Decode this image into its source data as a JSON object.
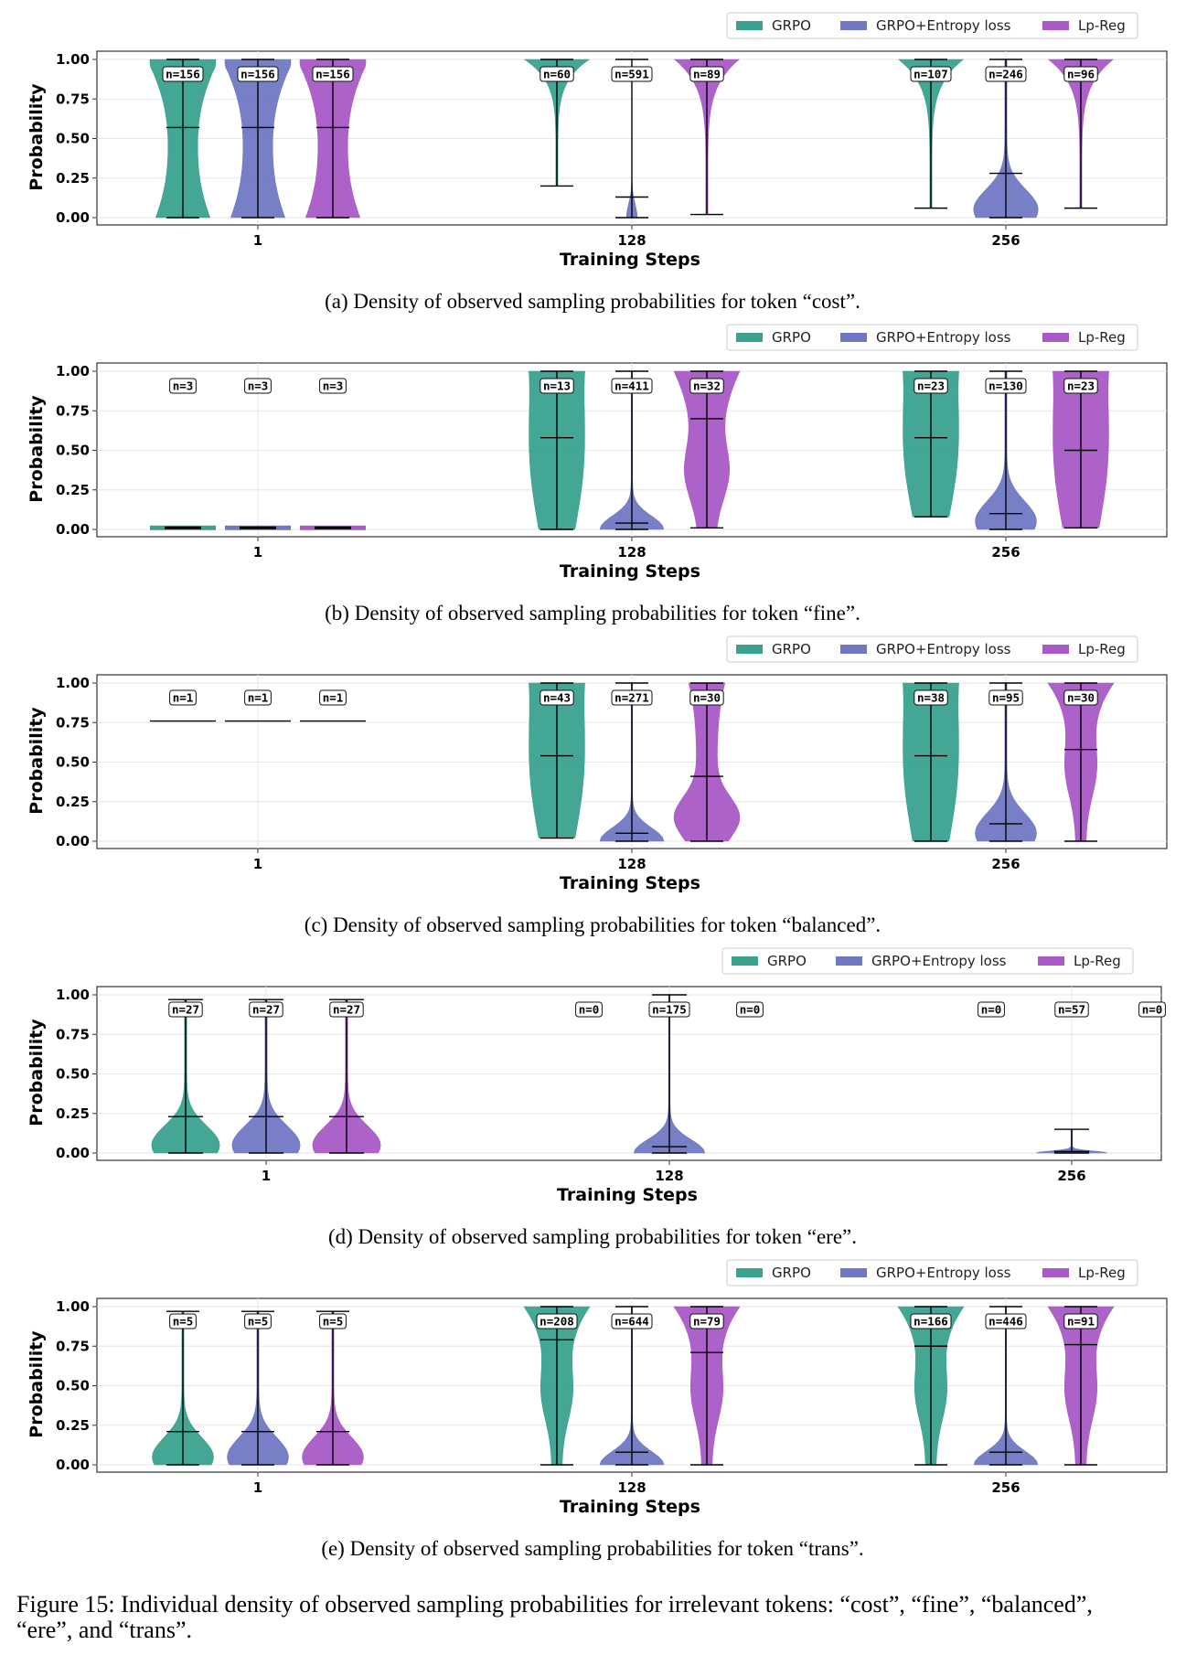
{
  "colors": {
    "GRPO": "#3aa18f",
    "GRPO+Entropy loss": "#7078c4",
    "Lp-Reg": "#a95ac7"
  },
  "figure_caption_line1": "Figure 15: Individual density of observed sampling probabilities for irrelevant tokens: “cost”, “fine”, “balanced”,",
  "figure_caption_line2": "“ere”, and “trans”.",
  "chart_data": [
    {
      "type": "violin",
      "caption": "(a) Density of observed sampling probabilities for token “cost”.",
      "xlabel": "Training Steps",
      "ylabel": "Probability",
      "categories": [
        "1",
        "128",
        "256"
      ],
      "yticks": [
        "0.00",
        "0.25",
        "0.50",
        "0.75",
        "1.00"
      ],
      "ylim": [
        0,
        1
      ],
      "grid": true,
      "legend": "top-right",
      "series": [
        {
          "name": "GRPO",
          "n": [
            156,
            60,
            107
          ],
          "min": [
            0.0,
            0.2,
            0.06
          ],
          "max": [
            1.0,
            1.0,
            1.0
          ],
          "median": [
            0.57,
            null,
            null
          ]
        },
        {
          "name": "GRPO+Entropy loss",
          "n": [
            156,
            591,
            246
          ],
          "min": [
            0.0,
            0.0,
            0.0
          ],
          "max": [
            1.0,
            1.0,
            1.0
          ],
          "median": [
            0.57,
            0.13,
            0.28
          ]
        },
        {
          "name": "Lp-Reg",
          "n": [
            156,
            89,
            96
          ],
          "min": [
            0.0,
            0.02,
            0.06
          ],
          "max": [
            1.0,
            1.0,
            1.0
          ],
          "median": [
            0.57,
            null,
            null
          ]
        }
      ]
    },
    {
      "type": "violin",
      "caption": "(b) Density of observed sampling probabilities for token “fine”.",
      "xlabel": "Training Steps",
      "ylabel": "Probability",
      "categories": [
        "1",
        "128",
        "256"
      ],
      "yticks": [
        "0.00",
        "0.25",
        "0.50",
        "0.75",
        "1.00"
      ],
      "ylim": [
        0,
        1
      ],
      "grid": true,
      "legend": "top-right",
      "series": [
        {
          "name": "GRPO",
          "n": [
            3,
            13,
            23
          ],
          "min": [
            0.01,
            0.0,
            0.08
          ],
          "max": [
            0.01,
            1.0,
            1.0
          ],
          "median": [
            0.01,
            0.58,
            0.58
          ]
        },
        {
          "name": "GRPO+Entropy loss",
          "n": [
            3,
            411,
            130
          ],
          "min": [
            0.01,
            0.0,
            0.0
          ],
          "max": [
            0.01,
            1.0,
            1.0
          ],
          "median": [
            0.01,
            0.04,
            0.1
          ]
        },
        {
          "name": "Lp-Reg",
          "n": [
            3,
            32,
            23
          ],
          "min": [
            0.01,
            0.01,
            0.01
          ],
          "max": [
            0.01,
            1.0,
            1.0
          ],
          "median": [
            0.01,
            0.7,
            0.5
          ]
        }
      ]
    },
    {
      "type": "violin",
      "caption": "(c) Density of observed sampling probabilities for token “balanced”.",
      "xlabel": "Training Steps",
      "ylabel": "Probability",
      "categories": [
        "1",
        "128",
        "256"
      ],
      "yticks": [
        "0.00",
        "0.25",
        "0.50",
        "0.75",
        "1.00"
      ],
      "ylim": [
        0,
        1
      ],
      "grid": true,
      "legend": "top-right",
      "series": [
        {
          "name": "GRPO",
          "n": [
            1,
            43,
            38
          ],
          "min": [
            0.76,
            0.02,
            0.0
          ],
          "max": [
            0.76,
            1.0,
            1.0
          ],
          "median": [
            0.76,
            0.54,
            0.54
          ]
        },
        {
          "name": "GRPO+Entropy loss",
          "n": [
            1,
            271,
            95
          ],
          "min": [
            0.76,
            0.0,
            0.0
          ],
          "max": [
            0.76,
            1.0,
            1.0
          ],
          "median": [
            0.76,
            0.05,
            0.11
          ]
        },
        {
          "name": "Lp-Reg",
          "n": [
            1,
            30,
            30
          ],
          "min": [
            0.76,
            0.0,
            0.0
          ],
          "max": [
            0.76,
            1.0,
            1.0
          ],
          "median": [
            0.76,
            0.41,
            0.58
          ]
        }
      ]
    },
    {
      "type": "violin",
      "caption": "(d) Density of observed sampling probabilities for token “ere”.",
      "xlabel": "Training Steps",
      "ylabel": "Probability",
      "categories": [
        "1",
        "128",
        "256"
      ],
      "yticks": [
        "0.00",
        "0.25",
        "0.50",
        "0.75",
        "1.00"
      ],
      "ylim": [
        0,
        1
      ],
      "grid": true,
      "legend": "top-right",
      "series": [
        {
          "name": "GRPO",
          "n": [
            27,
            0,
            0
          ],
          "min": [
            0.0,
            null,
            null
          ],
          "max": [
            0.97,
            null,
            null
          ],
          "median": [
            0.23,
            null,
            null
          ]
        },
        {
          "name": "GRPO+Entropy loss",
          "n": [
            27,
            175,
            57
          ],
          "min": [
            0.0,
            0.0,
            0.0
          ],
          "max": [
            0.97,
            1.0,
            0.15
          ],
          "median": [
            0.23,
            0.04,
            0.01
          ]
        },
        {
          "name": "Lp-Reg",
          "n": [
            27,
            0,
            0
          ],
          "min": [
            0.0,
            null,
            null
          ],
          "max": [
            0.97,
            null,
            null
          ],
          "median": [
            0.23,
            null,
            null
          ]
        }
      ]
    },
    {
      "type": "violin",
      "caption": "(e) Density of observed sampling probabilities for token “trans”.",
      "xlabel": "Training Steps",
      "ylabel": "Probability",
      "categories": [
        "1",
        "128",
        "256"
      ],
      "yticks": [
        "0.00",
        "0.25",
        "0.50",
        "0.75",
        "1.00"
      ],
      "ylim": [
        0,
        1
      ],
      "grid": true,
      "legend": "top-right",
      "series": [
        {
          "name": "GRPO",
          "n": [
            5,
            208,
            166
          ],
          "min": [
            0.0,
            0.0,
            0.0
          ],
          "max": [
            0.97,
            1.0,
            1.0
          ],
          "median": [
            0.21,
            0.79,
            0.75
          ]
        },
        {
          "name": "GRPO+Entropy loss",
          "n": [
            5,
            644,
            446
          ],
          "min": [
            0.0,
            0.0,
            0.0
          ],
          "max": [
            0.97,
            1.0,
            1.0
          ],
          "median": [
            0.21,
            0.08,
            0.08
          ]
        },
        {
          "name": "Lp-Reg",
          "n": [
            5,
            79,
            91
          ],
          "min": [
            0.0,
            0.0,
            0.0
          ],
          "max": [
            0.97,
            1.0,
            1.0
          ],
          "median": [
            0.21,
            0.71,
            0.76
          ]
        }
      ]
    }
  ]
}
